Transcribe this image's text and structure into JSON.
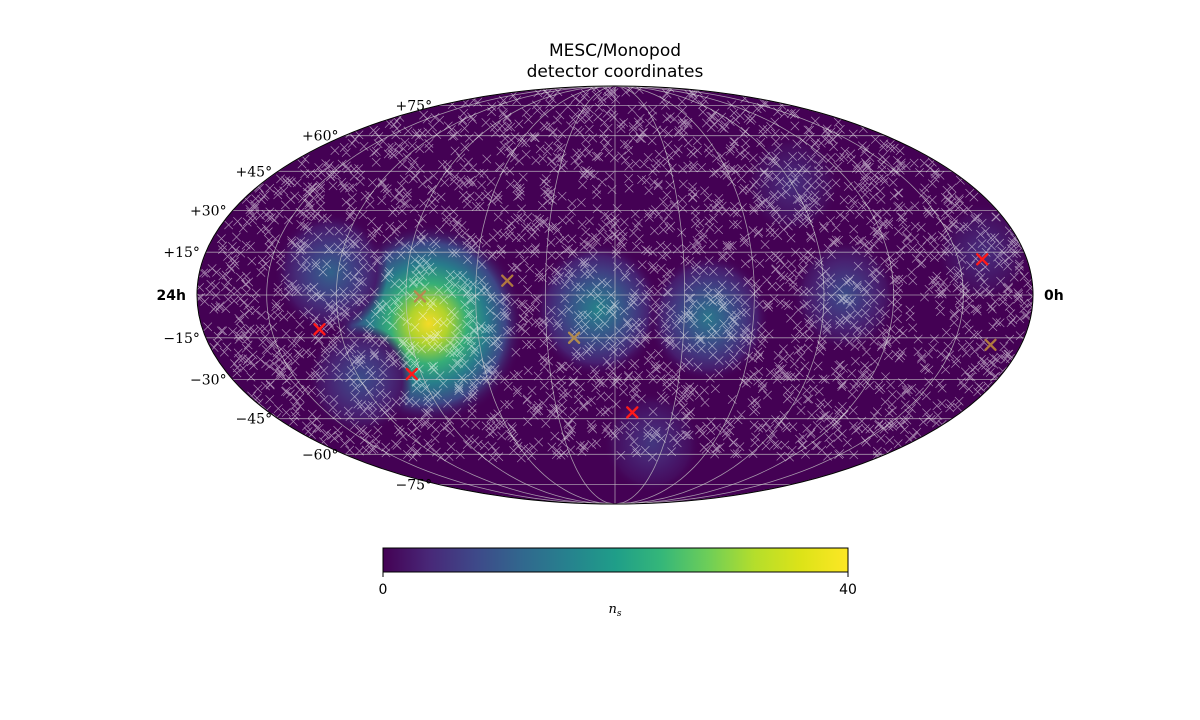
{
  "chart_data": {
    "type": "heatmap",
    "projection": "mollweide",
    "title": "MESC/Monopod",
    "subtitle": "detector coordinates",
    "ra_labels": {
      "left": "24h",
      "right": "0h"
    },
    "dec_ticks": [
      {
        "label": "+75°",
        "dec": 75
      },
      {
        "label": "+60°",
        "dec": 60
      },
      {
        "label": "+45°",
        "dec": 45
      },
      {
        "label": "+30°",
        "dec": 30
      },
      {
        "label": "+15°",
        "dec": 15
      },
      {
        "label": "−15°",
        "dec": -15
      },
      {
        "label": "−30°",
        "dec": -30
      },
      {
        "label": "−45°",
        "dec": -45
      },
      {
        "label": "−60°",
        "dec": -60
      },
      {
        "label": "−75°",
        "dec": -75
      }
    ],
    "colorbar": {
      "min": 0,
      "max": 40,
      "tick_labels": [
        "0",
        "40"
      ],
      "label": "n",
      "label_sub": "s",
      "colormap": "viridis"
    },
    "hotspots": [
      {
        "ra_h": 17.4,
        "dec": -10,
        "value": 40
      },
      {
        "ra_h": 12.5,
        "dec": -5,
        "value": 17
      },
      {
        "ra_h": 9.3,
        "dec": -8,
        "value": 15
      },
      {
        "ra_h": 5.4,
        "dec": 0,
        "value": 9
      },
      {
        "ra_h": 20.2,
        "dec": 8,
        "value": 12
      },
      {
        "ra_h": 6.0,
        "dec": 40,
        "value": 5
      },
      {
        "ra_h": 20.0,
        "dec": -30,
        "value": 9
      },
      {
        "ra_h": 10.5,
        "dec": -55,
        "value": 6
      },
      {
        "ra_h": 1.2,
        "dec": 15,
        "value": 5
      }
    ],
    "sources": [
      {
        "ra_h": 15.1,
        "dec": 5.0,
        "color": "#b07840"
      },
      {
        "ra_h": 17.6,
        "dec": -0.5,
        "color": "#b88a50"
      },
      {
        "ra_h": 20.6,
        "dec": -12.0,
        "color": "#ff1a1a"
      },
      {
        "ra_h": 18.3,
        "dec": -28.0,
        "color": "#ff1a1a"
      },
      {
        "ra_h": 13.2,
        "dec": -15.0,
        "color": "#b08a50"
      },
      {
        "ra_h": 11.4,
        "dec": -42.5,
        "color": "#ff1a1a"
      },
      {
        "ra_h": 1.3,
        "dec": 12.5,
        "color": "#ff1a1a"
      },
      {
        "ra_h": 0.9,
        "dec": -17.5,
        "color": "#b07a40"
      }
    ],
    "event_marker_count": 3000,
    "grid": true,
    "grid_ra_step_h": 2,
    "grid_dec_step_deg": 15
  }
}
